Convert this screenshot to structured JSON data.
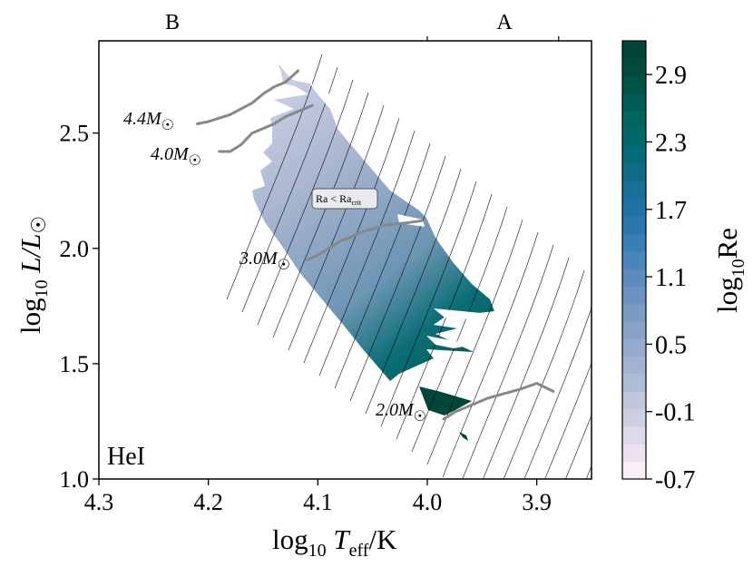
{
  "chart_data": {
    "type": "heatmap",
    "region_label": "HeI",
    "xlabel": {
      "pre": "log",
      "sub": "10",
      "mid": " T",
      "sub2": "eff",
      "post": "/K"
    },
    "ylabel": {
      "pre": "log",
      "sub": "10",
      "mid": " L/L",
      "sym": "☉"
    },
    "xlim": [
      4.3,
      3.85
    ],
    "ylim": [
      1.0,
      2.9
    ],
    "x_ticks": [
      {
        "value": 4.3,
        "label": "4.3"
      },
      {
        "value": 4.2,
        "label": "4.2"
      },
      {
        "value": 4.1,
        "label": "4.1"
      },
      {
        "value": 4.0,
        "label": "4.0"
      },
      {
        "value": 3.9,
        "label": "3.9"
      }
    ],
    "y_ticks": [
      {
        "value": 1.0,
        "label": "1.0"
      },
      {
        "value": 1.5,
        "label": "1.5"
      },
      {
        "value": 2.0,
        "label": "2.0"
      },
      {
        "value": 2.5,
        "label": "2.5"
      }
    ],
    "top_axis": {
      "labels": [
        "B",
        "A"
      ],
      "tick_values": [
        4.0,
        3.88
      ]
    },
    "colorbar": {
      "label": {
        "pre": "log",
        "sub": "10",
        "post": "Re"
      },
      "min": -0.7,
      "max": 3.2,
      "ticks": [
        "-0.7",
        "-0.1",
        "0.5",
        "1.1",
        "1.7",
        "2.3",
        "2.9"
      ],
      "tick_values": [
        -0.7,
        -0.1,
        0.5,
        1.1,
        1.7,
        2.3,
        2.9
      ],
      "colors": [
        "#f8f0f6",
        "#ece2ef",
        "#dcd9e8",
        "#cdd0e3",
        "#bfc7de",
        "#b0bdd8",
        "#a3b4d3",
        "#95aacd",
        "#89a2c8",
        "#7b9ac4",
        "#6b92c0",
        "#5a8cbd",
        "#4986b9",
        "#387fb5",
        "#2b78ae",
        "#2073a6",
        "#167097",
        "#0e6c87",
        "#056a79",
        "#006a6b",
        "#00655e",
        "#005c52",
        "#005347",
        "#004b3e",
        "#00443a"
      ]
    },
    "annotation": {
      "text": "Ra < Ra",
      "sub": "crit"
    },
    "tracks": [
      {
        "label": "4.4M",
        "sym": "☉",
        "x": [
          4.21,
          4.2,
          4.18,
          4.16,
          4.15,
          4.14,
          4.13,
          4.125,
          4.118
        ],
        "y": [
          2.54,
          2.55,
          2.58,
          2.63,
          2.67,
          2.7,
          2.72,
          2.74,
          2.77
        ]
      },
      {
        "label": "4.0M",
        "sym": "☉",
        "x": [
          4.19,
          4.18,
          4.17,
          4.16,
          4.14,
          4.13,
          4.12,
          4.105
        ],
        "y": [
          2.42,
          2.42,
          2.45,
          2.5,
          2.54,
          2.57,
          2.59,
          2.62
        ]
      },
      {
        "label": "3.0M",
        "sym": "☉",
        "x": [
          4.11,
          4.1,
          4.08,
          4.06,
          4.04,
          4.02,
          4.005
        ],
        "y": [
          1.95,
          1.97,
          2.03,
          2.07,
          2.1,
          2.11,
          2.12
        ]
      },
      {
        "label": "2.0M",
        "sym": "☉",
        "x": [
          3.985,
          3.975,
          3.965,
          3.955,
          3.945,
          3.93,
          3.915,
          3.9,
          3.885
        ],
        "y": [
          1.26,
          1.29,
          1.31,
          1.33,
          1.35,
          1.37,
          1.39,
          1.415,
          1.38
        ]
      }
    ]
  }
}
